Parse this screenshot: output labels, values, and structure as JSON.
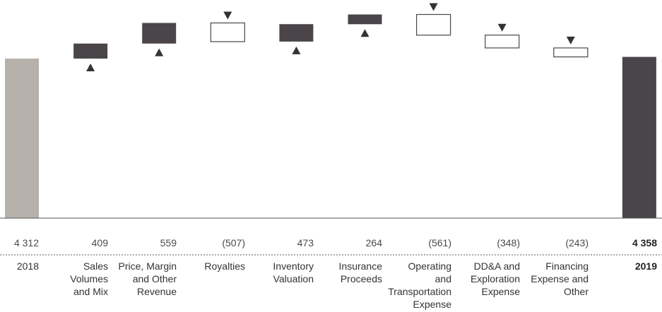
{
  "chart_data": {
    "type": "bar",
    "subtype": "waterfall",
    "unit_note": "",
    "categories": [
      "2018",
      "Sales Volumes and Mix",
      "Price, Margin and Other Revenue",
      "Royalties",
      "Inventory Valuation",
      "Insurance Proceeds",
      "Operating and Transportation Expense",
      "DD&A and Exploration Expense",
      "Financing Expense and Other",
      "2019"
    ],
    "category_lines": [
      [
        "2018"
      ],
      [
        "Sales",
        "Volumes",
        "and Mix"
      ],
      [
        "Price, Margin",
        "and Other",
        "Revenue"
      ],
      [
        "Royalties"
      ],
      [
        "Inventory",
        "Valuation"
      ],
      [
        "Insurance",
        "Proceeds"
      ],
      [
        "Operating",
        "and",
        "Transportation",
        "Expense"
      ],
      [
        "DD&A and",
        "Exploration",
        "Expense"
      ],
      [
        "Financing",
        "Expense and",
        "Other"
      ],
      [
        "2019"
      ]
    ],
    "values": [
      4312,
      409,
      559,
      -507,
      473,
      264,
      -561,
      -348,
      -243,
      4358
    ],
    "value_labels": [
      "4 312",
      "409",
      "559",
      "(507)",
      "473",
      "264",
      "(561)",
      "(348)",
      "(243)",
      "4 358"
    ],
    "bar_kind": [
      "total",
      "increase",
      "increase",
      "decrease",
      "increase",
      "increase",
      "decrease",
      "decrease",
      "decrease",
      "total"
    ],
    "bold": [
      false,
      false,
      false,
      false,
      false,
      false,
      false,
      false,
      false,
      true
    ],
    "colors": {
      "start_total": "#b7b1ab",
      "end_total": "#4a4549",
      "increase": "#4a4549",
      "decrease_fill": "#ffffff",
      "decrease_stroke": "#4a4549",
      "marker": "#333333",
      "baseline": "#555555"
    }
  }
}
